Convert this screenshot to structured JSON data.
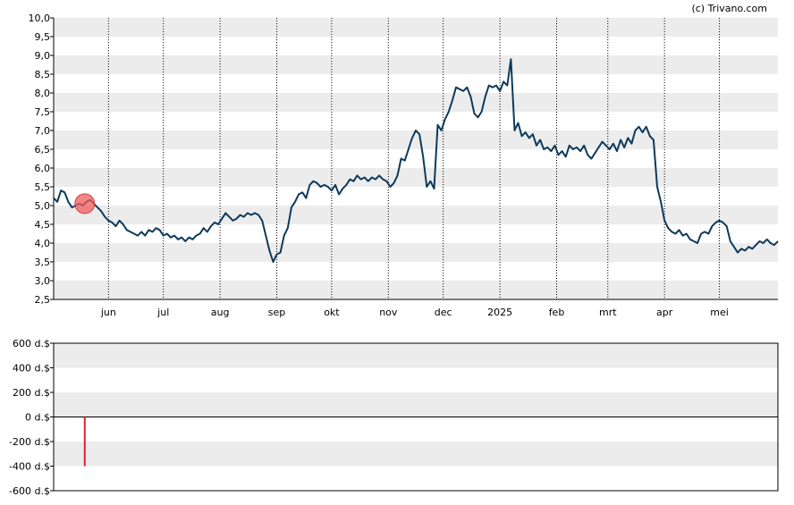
{
  "credit": "(c) Trivano.com",
  "colors": {
    "line": "#0d3a5c",
    "band": "#ececec",
    "marker": "#f25c5c",
    "bar": "#e0202c",
    "axis": "#000000"
  },
  "chart_data": [
    {
      "type": "line",
      "title": "",
      "xlabel": "",
      "ylabel": "",
      "x_months": [
        "jun",
        "jul",
        "aug",
        "sep",
        "okt",
        "nov",
        "dec",
        "2025",
        "feb",
        "mrt",
        "apr",
        "mei"
      ],
      "y_ticks": [
        "10,0",
        "9,5",
        "9,0",
        "8,5",
        "8,0",
        "7,5",
        "7,0",
        "6,5",
        "6,0",
        "5,5",
        "5,0",
        "4,5",
        "4,0",
        "3,5",
        "3,0",
        "2,5"
      ],
      "ylim": [
        2.5,
        10.0
      ],
      "grid": "alternating horizontal bands, dotted vertical month lines",
      "series": [
        {
          "points": [
            [
              0,
              5.2
            ],
            [
              2,
              5.1
            ],
            [
              4,
              5.4
            ],
            [
              6,
              5.35
            ],
            [
              8,
              5.1
            ],
            [
              10,
              4.95
            ],
            [
              12,
              5.0
            ],
            [
              14,
              5.05
            ],
            [
              16,
              5.0
            ],
            [
              18,
              5.1
            ],
            [
              20,
              5.15
            ],
            [
              22,
              5.05
            ],
            [
              24,
              4.95
            ],
            [
              26,
              4.85
            ],
            [
              28,
              4.7
            ],
            [
              30,
              4.6
            ],
            [
              32,
              4.55
            ],
            [
              34,
              4.45
            ],
            [
              36,
              4.6
            ],
            [
              38,
              4.5
            ],
            [
              40,
              4.35
            ],
            [
              42,
              4.3
            ],
            [
              44,
              4.25
            ],
            [
              46,
              4.2
            ],
            [
              48,
              4.3
            ],
            [
              50,
              4.2
            ],
            [
              52,
              4.35
            ],
            [
              54,
              4.3
            ],
            [
              56,
              4.4
            ],
            [
              58,
              4.35
            ],
            [
              60,
              4.2
            ],
            [
              62,
              4.25
            ],
            [
              64,
              4.15
            ],
            [
              66,
              4.2
            ],
            [
              68,
              4.1
            ],
            [
              70,
              4.15
            ],
            [
              72,
              4.05
            ],
            [
              74,
              4.15
            ],
            [
              76,
              4.1
            ],
            [
              78,
              4.2
            ],
            [
              80,
              4.25
            ],
            [
              82,
              4.4
            ],
            [
              84,
              4.3
            ],
            [
              86,
              4.45
            ],
            [
              88,
              4.55
            ],
            [
              90,
              4.5
            ],
            [
              92,
              4.65
            ],
            [
              94,
              4.8
            ],
            [
              96,
              4.7
            ],
            [
              98,
              4.6
            ],
            [
              100,
              4.65
            ],
            [
              102,
              4.75
            ],
            [
              104,
              4.7
            ],
            [
              106,
              4.8
            ],
            [
              108,
              4.75
            ],
            [
              110,
              4.8
            ],
            [
              112,
              4.75
            ],
            [
              114,
              4.6
            ],
            [
              116,
              4.2
            ],
            [
              118,
              3.8
            ],
            [
              120,
              3.5
            ],
            [
              122,
              3.7
            ],
            [
              124,
              3.75
            ],
            [
              126,
              4.2
            ],
            [
              128,
              4.4
            ],
            [
              130,
              4.95
            ],
            [
              132,
              5.1
            ],
            [
              134,
              5.3
            ],
            [
              136,
              5.35
            ],
            [
              138,
              5.2
            ],
            [
              140,
              5.55
            ],
            [
              142,
              5.65
            ],
            [
              144,
              5.6
            ],
            [
              146,
              5.5
            ],
            [
              148,
              5.55
            ],
            [
              150,
              5.5
            ],
            [
              152,
              5.4
            ],
            [
              154,
              5.55
            ],
            [
              156,
              5.3
            ],
            [
              158,
              5.45
            ],
            [
              160,
              5.55
            ],
            [
              162,
              5.7
            ],
            [
              164,
              5.65
            ],
            [
              166,
              5.8
            ],
            [
              168,
              5.7
            ],
            [
              170,
              5.75
            ],
            [
              172,
              5.65
            ],
            [
              174,
              5.75
            ],
            [
              176,
              5.7
            ],
            [
              178,
              5.8
            ],
            [
              180,
              5.7
            ],
            [
              182,
              5.65
            ],
            [
              184,
              5.5
            ],
            [
              186,
              5.6
            ],
            [
              188,
              5.8
            ],
            [
              190,
              6.25
            ],
            [
              192,
              6.2
            ],
            [
              194,
              6.5
            ],
            [
              196,
              6.8
            ],
            [
              198,
              7.0
            ],
            [
              200,
              6.9
            ],
            [
              202,
              6.3
            ],
            [
              204,
              5.5
            ],
            [
              206,
              5.65
            ],
            [
              208,
              5.45
            ],
            [
              210,
              7.15
            ],
            [
              212,
              7.0
            ],
            [
              214,
              7.3
            ],
            [
              216,
              7.5
            ],
            [
              218,
              7.8
            ],
            [
              220,
              8.15
            ],
            [
              222,
              8.1
            ],
            [
              224,
              8.05
            ],
            [
              226,
              8.15
            ],
            [
              228,
              7.9
            ],
            [
              230,
              7.45
            ],
            [
              232,
              7.35
            ],
            [
              234,
              7.5
            ],
            [
              236,
              7.9
            ],
            [
              238,
              8.2
            ],
            [
              240,
              8.15
            ],
            [
              242,
              8.2
            ],
            [
              244,
              8.05
            ],
            [
              246,
              8.3
            ],
            [
              248,
              8.2
            ],
            [
              250,
              8.9
            ],
            [
              252,
              7.0
            ],
            [
              254,
              7.2
            ],
            [
              256,
              6.85
            ],
            [
              258,
              6.95
            ],
            [
              260,
              6.8
            ],
            [
              262,
              6.9
            ],
            [
              264,
              6.6
            ],
            [
              266,
              6.75
            ],
            [
              268,
              6.5
            ],
            [
              270,
              6.55
            ],
            [
              272,
              6.45
            ],
            [
              274,
              6.6
            ],
            [
              276,
              6.35
            ],
            [
              278,
              6.45
            ],
            [
              280,
              6.3
            ],
            [
              282,
              6.6
            ],
            [
              284,
              6.5
            ],
            [
              286,
              6.55
            ],
            [
              288,
              6.45
            ],
            [
              290,
              6.6
            ],
            [
              292,
              6.35
            ],
            [
              294,
              6.25
            ],
            [
              296,
              6.4
            ],
            [
              298,
              6.55
            ],
            [
              300,
              6.7
            ],
            [
              302,
              6.6
            ],
            [
              304,
              6.5
            ],
            [
              306,
              6.65
            ],
            [
              308,
              6.45
            ],
            [
              310,
              6.75
            ],
            [
              312,
              6.55
            ],
            [
              314,
              6.8
            ],
            [
              316,
              6.65
            ],
            [
              318,
              7.0
            ],
            [
              320,
              7.1
            ],
            [
              322,
              6.95
            ],
            [
              324,
              7.1
            ],
            [
              326,
              6.85
            ],
            [
              328,
              6.75
            ],
            [
              330,
              5.5
            ],
            [
              332,
              5.1
            ],
            [
              334,
              4.6
            ],
            [
              336,
              4.4
            ],
            [
              338,
              4.3
            ],
            [
              340,
              4.25
            ],
            [
              342,
              4.35
            ],
            [
              344,
              4.2
            ],
            [
              346,
              4.25
            ],
            [
              348,
              4.1
            ],
            [
              350,
              4.05
            ],
            [
              352,
              4.0
            ],
            [
              354,
              4.25
            ],
            [
              356,
              4.3
            ],
            [
              358,
              4.25
            ],
            [
              360,
              4.45
            ],
            [
              362,
              4.55
            ],
            [
              364,
              4.6
            ],
            [
              366,
              4.55
            ],
            [
              368,
              4.45
            ],
            [
              370,
              4.05
            ],
            [
              372,
              3.9
            ],
            [
              374,
              3.75
            ],
            [
              376,
              3.85
            ],
            [
              378,
              3.8
            ],
            [
              380,
              3.9
            ],
            [
              382,
              3.85
            ],
            [
              384,
              3.95
            ],
            [
              386,
              4.05
            ],
            [
              388,
              4.0
            ],
            [
              390,
              4.1
            ],
            [
              392,
              4.0
            ],
            [
              394,
              3.95
            ],
            [
              396,
              4.05
            ]
          ]
        }
      ],
      "annotations": [
        {
          "kind": "marker",
          "x": 17,
          "y": 5.05
        }
      ]
    },
    {
      "type": "bar",
      "title": "",
      "xlabel": "",
      "ylabel": "",
      "y_ticks": [
        "600 d.$",
        "400 d.$",
        "200 d.$",
        "0 d.$",
        "-200 d.$",
        "-400 d.$",
        "-600 d.$"
      ],
      "ylim": [
        -600,
        600
      ],
      "grid": "alternating horizontal bands",
      "series": [
        {
          "points": [
            [
              17,
              -400
            ]
          ]
        }
      ]
    }
  ]
}
